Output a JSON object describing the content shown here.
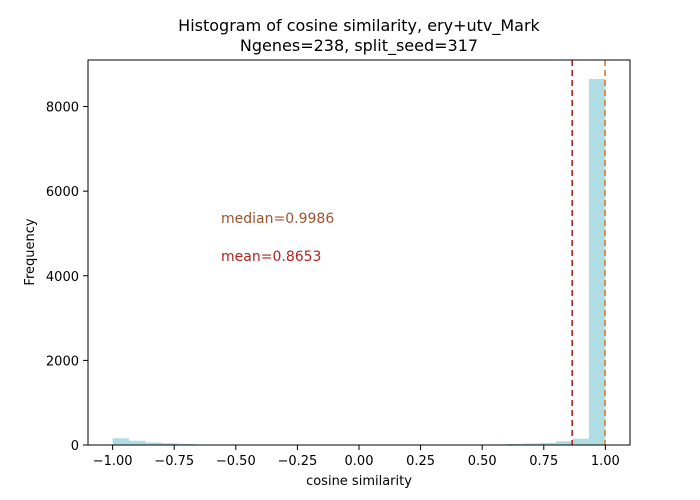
{
  "chart_data": {
    "type": "bar",
    "title_line1": "Histogram of cosine similarity, ery+utv_Mark",
    "title_line2": "Ngenes=238, split_seed=317",
    "xlabel": "cosine similarity",
    "ylabel": "Frequency",
    "xlim": [
      -1.1,
      1.1
    ],
    "ylim": [
      0,
      9100
    ],
    "xticks": [
      -1.0,
      -0.75,
      -0.5,
      -0.25,
      0.0,
      0.25,
      0.5,
      0.75,
      1.0
    ],
    "xtick_labels": [
      "−1.00",
      "−0.75",
      "−0.50",
      "−0.25",
      "0.00",
      "0.25",
      "0.50",
      "0.75",
      "1.00"
    ],
    "yticks": [
      0,
      2000,
      4000,
      6000,
      8000
    ],
    "ytick_labels": [
      "0",
      "2000",
      "4000",
      "6000",
      "8000"
    ],
    "bar_color": "#b0dde4",
    "bins": {
      "edges": [
        -1.0,
        -0.9333,
        -0.8667,
        -0.8,
        -0.7333,
        -0.6667,
        -0.6,
        -0.5333,
        -0.4667,
        -0.4,
        -0.3333,
        -0.2667,
        -0.2,
        -0.1333,
        -0.0667,
        0.0,
        0.0667,
        0.1333,
        0.2,
        0.2667,
        0.3333,
        0.4,
        0.4667,
        0.5333,
        0.6,
        0.6667,
        0.7333,
        0.8,
        0.8667,
        0.9333,
        1.0
      ],
      "counts": [
        160,
        100,
        60,
        40,
        25,
        12,
        8,
        5,
        4,
        3,
        3,
        2,
        2,
        2,
        2,
        2,
        2,
        3,
        3,
        4,
        5,
        6,
        10,
        14,
        25,
        35,
        50,
        90,
        150,
        8650
      ]
    },
    "lines": [
      {
        "name": "mean",
        "x": 0.8653,
        "color": "#b22222",
        "style": "dashed"
      },
      {
        "name": "median",
        "x": 0.9986,
        "color": "#e07b24",
        "style": "dashed"
      }
    ],
    "annotations": [
      {
        "text": "median=0.9986",
        "x": -0.56,
        "y": 5250,
        "color": "#a0522d"
      },
      {
        "text": "mean=0.8653",
        "x": -0.56,
        "y": 4350,
        "color": "#b22222"
      }
    ]
  }
}
